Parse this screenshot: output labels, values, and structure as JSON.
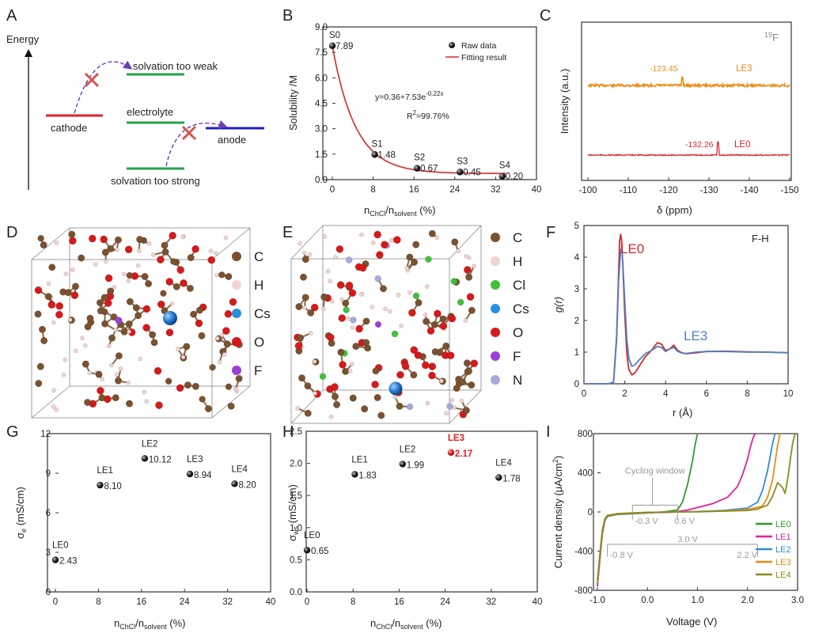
{
  "panels": {
    "A": {
      "label": "A",
      "axis_label": "Energy",
      "levels": [
        "solvation too weak",
        "electrolyte",
        "solvation too strong",
        "cathode",
        "anode"
      ],
      "colors": {
        "cathode": "#e0202a",
        "electrolyte": "#22a34a",
        "anode": "#1f1fbf",
        "cross": "#d9534f",
        "arrow": "#6a3fb0"
      }
    },
    "D": {
      "label": "D",
      "legend": [
        {
          "name": "C",
          "color": "#7a5230"
        },
        {
          "name": "H",
          "color": "#f0d4d2"
        },
        {
          "name": "Cs",
          "color": "#2b8fde"
        },
        {
          "name": "O",
          "color": "#d61a1a"
        },
        {
          "name": "F",
          "color": "#9b3fd6"
        }
      ]
    },
    "E": {
      "label": "E",
      "legend": [
        {
          "name": "C",
          "color": "#7a5230"
        },
        {
          "name": "H",
          "color": "#f0d4d2"
        },
        {
          "name": "Cl",
          "color": "#3fc13a"
        },
        {
          "name": "Cs",
          "color": "#2b8fde"
        },
        {
          "name": "O",
          "color": "#d61a1a"
        },
        {
          "name": "F",
          "color": "#9b3fd6"
        },
        {
          "name": "N",
          "color": "#a7a9d8"
        }
      ]
    }
  },
  "chart_data": [
    {
      "panel": "B",
      "type": "scatter",
      "ylabel": "Solubility /M",
      "xlabel_main": "n",
      "xlabel_sub1": "ChCl",
      "xlabel_mid": "/n",
      "xlabel_sub2": "solvent",
      "xlabel_end": " (%)",
      "xlim": [
        0,
        40
      ],
      "ylim": [
        0,
        9
      ],
      "xticks": [
        "0",
        "8",
        "16",
        "24",
        "32",
        "40"
      ],
      "yticks": [
        "0.0",
        "1.5",
        "3.0",
        "4.5",
        "6.0",
        "7.5",
        "9.0"
      ],
      "points": [
        {
          "name": "S0",
          "x": 0,
          "y": 7.89,
          "label": "7.89"
        },
        {
          "name": "S1",
          "x": 8.3,
          "y": 1.48,
          "label": "1.48"
        },
        {
          "name": "S2",
          "x": 16.6,
          "y": 0.67,
          "label": "0.67"
        },
        {
          "name": "S3",
          "x": 25,
          "y": 0.45,
          "label": "0.45"
        },
        {
          "name": "S4",
          "x": 33.3,
          "y": 0.2,
          "label": "0.20"
        }
      ],
      "fit": {
        "a": 0.36,
        "b": 7.53,
        "k": 0.22,
        "color": "#d62728"
      },
      "legend": [
        "Raw data",
        "Fitting result"
      ],
      "equation_main": "y=0.36+7.53e",
      "equation_exp": "-0.22x",
      "r2_main": "R",
      "r2_sup": "2",
      "r2_value": "=99.76%"
    },
    {
      "panel": "C",
      "type": "line",
      "ylabel": "Intensity (a.u.)",
      "xlabel": "δ (ppm)",
      "xlim": [
        -100,
        -150
      ],
      "xticks": [
        "-100",
        "-110",
        "-120",
        "-130",
        "-140",
        "-150"
      ],
      "nucleus_sup": "19",
      "nucleus": "F",
      "series": [
        {
          "name": "LE3",
          "peak_ppm": -123.45,
          "peak_label": "-123.45",
          "color": "#f08a14"
        },
        {
          "name": "LE0",
          "peak_ppm": -132.26,
          "peak_label": "-132.26",
          "color": "#d62728"
        }
      ]
    },
    {
      "panel": "F",
      "type": "line",
      "ylabel": "g(r)",
      "xlabel": "r (Å)",
      "title": "F-H",
      "xlim": [
        0,
        10
      ],
      "ylim": [
        0,
        5
      ],
      "xticks": [
        "0",
        "2",
        "4",
        "6",
        "8",
        "10"
      ],
      "yticks": [
        "0",
        "1",
        "2",
        "3",
        "4",
        "5"
      ],
      "series": [
        {
          "name": "LE0",
          "color": "#d62728",
          "x": [
            0,
            1.2,
            1.45,
            1.6,
            1.7,
            1.75,
            1.8,
            1.85,
            1.9,
            2.0,
            2.1,
            2.2,
            2.35,
            2.5,
            2.7,
            3.0,
            3.3,
            3.6,
            3.8,
            4.0,
            4.2,
            4.4,
            4.6,
            4.8,
            5.0,
            5.5,
            6.0,
            7.0,
            8.0,
            9.0,
            10.0
          ],
          "y": [
            0,
            0,
            0.05,
            1.5,
            3.6,
            4.5,
            4.72,
            4.5,
            3.8,
            2.2,
            0.95,
            0.45,
            0.28,
            0.35,
            0.55,
            0.85,
            1.05,
            1.3,
            1.25,
            1.05,
            1.1,
            1.22,
            1.05,
            0.98,
            0.95,
            0.98,
            1.02,
            1.03,
            1.01,
            1.0,
            0.98
          ]
        },
        {
          "name": "LE3",
          "color": "#4f7fc6",
          "x": [
            0,
            1.2,
            1.45,
            1.6,
            1.7,
            1.8,
            1.85,
            1.9,
            2.0,
            2.1,
            2.2,
            2.35,
            2.5,
            2.7,
            3.0,
            3.3,
            3.6,
            3.8,
            4.0,
            4.2,
            4.4,
            4.6,
            4.8,
            5.0,
            5.5,
            6.0,
            7.0,
            8.0,
            9.0,
            10.0
          ],
          "y": [
            0,
            0,
            0.05,
            1.4,
            3.3,
            4.2,
            4.3,
            3.9,
            2.6,
            1.4,
            0.8,
            0.55,
            0.6,
            0.75,
            0.95,
            1.05,
            1.18,
            1.15,
            1.02,
            1.1,
            1.15,
            1.02,
            0.97,
            0.96,
            1.0,
            1.02,
            1.02,
            1.0,
            1.0,
            0.98
          ]
        }
      ]
    },
    {
      "panel": "G",
      "type": "scatter",
      "ylabel_main": "σ",
      "ylabel_sub": "e",
      "ylabel_end": " (mS/cm)",
      "xlabel_main": "n",
      "xlabel_sub1": "ChCl",
      "xlabel_mid": "/n",
      "xlabel_sub2": "solvent",
      "xlabel_end": " (%)",
      "xlim": [
        0,
        40
      ],
      "ylim": [
        0,
        12
      ],
      "xticks": [
        "0",
        "8",
        "16",
        "24",
        "32",
        "40"
      ],
      "yticks": [
        "0",
        "3",
        "6",
        "9",
        "12"
      ],
      "points": [
        {
          "name": "LE0",
          "x": 0,
          "y": 2.43,
          "label": "2.43"
        },
        {
          "name": "LE1",
          "x": 8.3,
          "y": 8.1,
          "label": "8.10"
        },
        {
          "name": "LE2",
          "x": 16.6,
          "y": 10.12,
          "label": "10.12"
        },
        {
          "name": "LE3",
          "x": 25,
          "y": 8.94,
          "label": "8.94"
        },
        {
          "name": "LE4",
          "x": 33.3,
          "y": 8.2,
          "label": "8.20"
        }
      ]
    },
    {
      "panel": "H",
      "type": "scatter",
      "ylabel_main": "σ",
      "ylabel_sub": "ws",
      "ylabel_end": " (mS/cm)",
      "xlabel_main": "n",
      "xlabel_sub1": "ChCl",
      "xlabel_mid": "/n",
      "xlabel_sub2": "solvent",
      "xlabel_end": " (%)",
      "xlim": [
        0,
        40
      ],
      "ylim": [
        0,
        2.5
      ],
      "xticks": [
        "0",
        "8",
        "16",
        "24",
        "32",
        "40"
      ],
      "yticks": [
        "0.0",
        "0.5",
        "1.0",
        "1.5",
        "2.0",
        "2.5"
      ],
      "highlight_color": "#e02020",
      "points": [
        {
          "name": "LE0",
          "x": 0,
          "y": 0.65,
          "label": "0.65",
          "highlight": false
        },
        {
          "name": "LE1",
          "x": 8.3,
          "y": 1.83,
          "label": "1.83",
          "highlight": false
        },
        {
          "name": "LE2",
          "x": 16.6,
          "y": 1.99,
          "label": "1.99",
          "highlight": false
        },
        {
          "name": "LE3",
          "x": 25,
          "y": 2.17,
          "label": "2.17",
          "highlight": true
        },
        {
          "name": "LE4",
          "x": 33.3,
          "y": 1.78,
          "label": "1.78",
          "highlight": false
        }
      ]
    },
    {
      "panel": "I",
      "type": "line",
      "ylabel_main": "Current density (μA/cm",
      "ylabel_sup": "2",
      "ylabel_end": ")",
      "xlabel": "Voltage (V)",
      "xlim": [
        -1.0,
        3.0
      ],
      "ylim": [
        -800,
        800
      ],
      "xticks": [
        "-1.0",
        "0.0",
        "1.0",
        "2.0",
        "3.0"
      ],
      "yticks": [
        "-800",
        "-400",
        "0",
        "400",
        "800"
      ],
      "annotations": {
        "cycling_window": "Cycling window",
        "low1": "-0.3 V",
        "high1": "0.6 V",
        "low2": "-0.8 V",
        "high2": "2.2 V",
        "span": "3.0 V"
      },
      "series": [
        {
          "name": "LE0",
          "color": "#2e9b2e",
          "x": [
            -1.0,
            -0.95,
            -0.9,
            -0.85,
            -0.8,
            -0.6,
            -0.3,
            0.0,
            0.3,
            0.6,
            0.7,
            0.8,
            0.9,
            0.95,
            1.0
          ],
          "y": [
            -760,
            -480,
            -220,
            -90,
            -45,
            -25,
            -18,
            -10,
            -2,
            20,
            100,
            280,
            520,
            680,
            800
          ]
        },
        {
          "name": "LE1",
          "color": "#e0209a",
          "x": [
            -1.0,
            -0.95,
            -0.9,
            -0.85,
            -0.8,
            -0.6,
            -0.3,
            0.0,
            0.5,
            0.8,
            1.0,
            1.3,
            1.6,
            1.8,
            1.9,
            2.0,
            2.05,
            2.1,
            2.15
          ],
          "y": [
            -760,
            -470,
            -210,
            -85,
            -42,
            -22,
            -15,
            -8,
            -3,
            20,
            45,
            85,
            150,
            260,
            380,
            540,
            650,
            740,
            800
          ]
        },
        {
          "name": "LE2",
          "color": "#2e8fd6",
          "x": [
            -1.0,
            -0.95,
            -0.9,
            -0.85,
            -0.8,
            -0.6,
            -0.3,
            0.0,
            0.5,
            1.0,
            1.5,
            2.0,
            2.2,
            2.3,
            2.4,
            2.45,
            2.5,
            2.55
          ],
          "y": [
            -740,
            -450,
            -200,
            -80,
            -40,
            -20,
            -13,
            -6,
            0,
            5,
            15,
            40,
            100,
            220,
            420,
            560,
            700,
            800
          ]
        },
        {
          "name": "LE3",
          "color": "#f08a14",
          "x": [
            -1.0,
            -0.95,
            -0.9,
            -0.85,
            -0.8,
            -0.6,
            -0.3,
            0.0,
            0.5,
            1.0,
            1.5,
            2.0,
            2.3,
            2.4,
            2.5,
            2.55,
            2.6,
            2.65
          ],
          "y": [
            -720,
            -430,
            -190,
            -75,
            -38,
            -18,
            -12,
            -5,
            0,
            3,
            10,
            25,
            60,
            150,
            330,
            500,
            680,
            800
          ]
        },
        {
          "name": "LE4",
          "color": "#8c8c1e",
          "x": [
            -1.0,
            -0.95,
            -0.9,
            -0.85,
            -0.8,
            -0.6,
            -0.3,
            0.0,
            0.5,
            1.0,
            1.5,
            2.0,
            2.2,
            2.4,
            2.5,
            2.6,
            2.7,
            2.75,
            2.8,
            2.85,
            2.9,
            2.95
          ],
          "y": [
            -700,
            -420,
            -180,
            -70,
            -35,
            -17,
            -10,
            -4,
            0,
            2,
            8,
            15,
            30,
            70,
            160,
            300,
            250,
            190,
            330,
            520,
            700,
            800
          ]
        }
      ]
    }
  ]
}
